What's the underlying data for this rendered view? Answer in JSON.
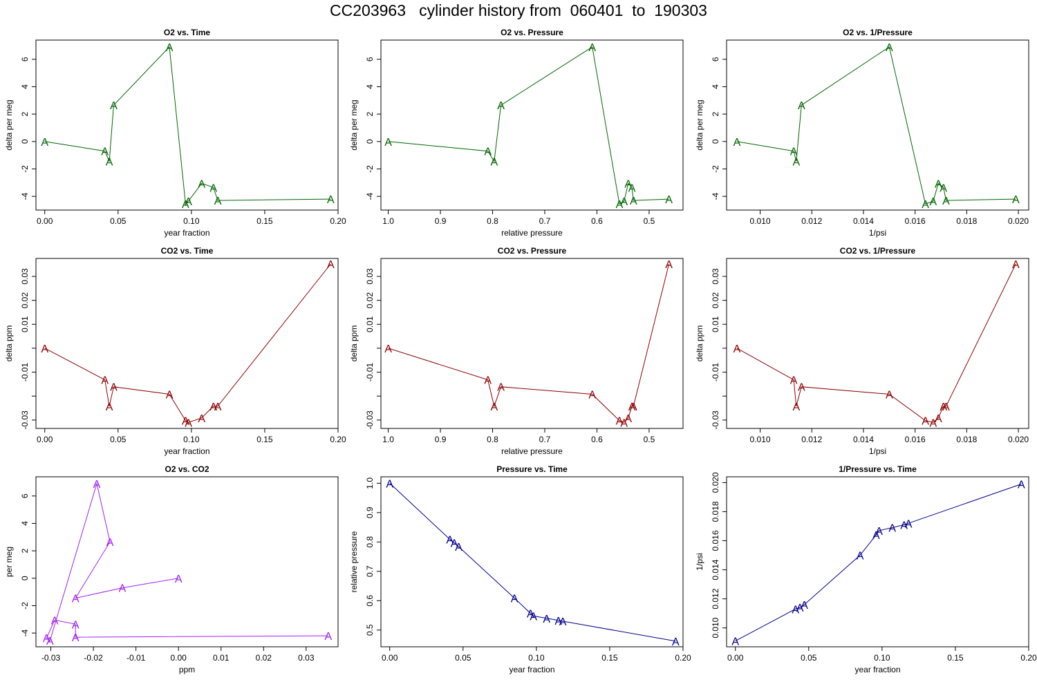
{
  "page_title": "CC203963   cylinder history from  060401  to  190303",
  "marker_label": "A",
  "colors": {
    "o2": "#006400",
    "co2": "#8b0000",
    "o2co2": "#a020f0",
    "pressure": "#00008b"
  },
  "chart_data": [
    {
      "type": "line",
      "title": "O2 vs. Time",
      "xlabel": "year fraction",
      "ylabel": "delta per meg",
      "color": "#006400",
      "xlim": [
        -0.006,
        0.2
      ],
      "ylim": [
        -5.0,
        7.4
      ],
      "xticks": [
        0.0,
        0.05,
        0.1,
        0.15,
        0.2
      ],
      "xtick_labels": [
        "0.00",
        "0.05",
        "0.10",
        "0.15",
        "0.20"
      ],
      "yticks": [
        -4,
        -2,
        0,
        2,
        4,
        6
      ],
      "ytick_labels": [
        "-4",
        "-2",
        "0",
        "2",
        "4",
        "6"
      ],
      "x": [
        0.0,
        0.041,
        0.044,
        0.047,
        0.085,
        0.096,
        0.098,
        0.107,
        0.115,
        0.118,
        0.195
      ],
      "y": [
        0.0,
        -0.7,
        -1.45,
        2.65,
        6.9,
        -4.55,
        -4.35,
        -3.05,
        -3.35,
        -4.3,
        -4.2
      ]
    },
    {
      "type": "line",
      "title": "O2 vs. Pressure",
      "xlabel": "relative pressure",
      "ylabel": "delta per meg",
      "color": "#006400",
      "xlim": [
        1.014,
        0.435
      ],
      "ylim": [
        -5.0,
        7.4
      ],
      "xticks": [
        1.0,
        0.9,
        0.8,
        0.7,
        0.6,
        0.5
      ],
      "xtick_labels": [
        "1.0",
        "0.9",
        "0.8",
        "0.7",
        "0.6",
        "0.5"
      ],
      "yticks": [
        -4,
        -2,
        0,
        2,
        4,
        6
      ],
      "ytick_labels": [
        "-4",
        "-2",
        "0",
        "2",
        "4",
        "6"
      ],
      "x": [
        1.0,
        0.809,
        0.797,
        0.784,
        0.609,
        0.557,
        0.548,
        0.54,
        0.533,
        0.53,
        0.462
      ],
      "y": [
        0.0,
        -0.7,
        -1.45,
        2.65,
        6.9,
        -4.55,
        -4.35,
        -3.05,
        -3.35,
        -4.3,
        -4.2
      ]
    },
    {
      "type": "line",
      "title": "O2 vs. 1/Pressure",
      "xlabel": "1/psi",
      "ylabel": "delta per meg",
      "color": "#006400",
      "xlim": [
        0.0087,
        0.0204
      ],
      "ylim": [
        -5.0,
        7.4
      ],
      "xticks": [
        0.01,
        0.012,
        0.014,
        0.016,
        0.018,
        0.02
      ],
      "xtick_labels": [
        "0.010",
        "0.012",
        "0.014",
        "0.016",
        "0.018",
        "0.020"
      ],
      "yticks": [
        -4,
        -2,
        0,
        2,
        4,
        6
      ],
      "ytick_labels": [
        "-4",
        "-2",
        "0",
        "2",
        "4",
        "6"
      ],
      "x": [
        0.0091,
        0.0113,
        0.0114,
        0.0116,
        0.015,
        0.0164,
        0.0167,
        0.0169,
        0.0171,
        0.0172,
        0.0199
      ],
      "y": [
        0.0,
        -0.7,
        -1.45,
        2.65,
        6.9,
        -4.55,
        -4.35,
        -3.05,
        -3.35,
        -4.3,
        -4.2
      ]
    },
    {
      "type": "line",
      "title": "CO2 vs. Time",
      "xlabel": "year fraction",
      "ylabel": "delta ppm",
      "color": "#8b0000",
      "xlim": [
        -0.006,
        0.2
      ],
      "ylim": [
        -0.0335,
        0.0375
      ],
      "xticks": [
        0.0,
        0.05,
        0.1,
        0.15,
        0.2
      ],
      "xtick_labels": [
        "0.00",
        "0.05",
        "0.10",
        "0.15",
        "0.20"
      ],
      "yticks": [
        -0.03,
        -0.02,
        -0.01,
        0.0,
        0.01,
        0.02,
        0.03
      ],
      "ytick_labels": [
        "-0.03",
        "",
        "-0.01",
        "",
        "0.01",
        "0.02",
        "0.03"
      ],
      "x": [
        0.0,
        0.041,
        0.044,
        0.047,
        0.085,
        0.096,
        0.098,
        0.107,
        0.115,
        0.118,
        0.195
      ],
      "y": [
        0.0,
        -0.0132,
        -0.0242,
        -0.0161,
        -0.0192,
        -0.0302,
        -0.031,
        -0.0291,
        -0.0242,
        -0.0242,
        0.0352
      ]
    },
    {
      "type": "line",
      "title": "CO2 vs. Pressure",
      "xlabel": "relative pressure",
      "ylabel": "delta ppm",
      "color": "#8b0000",
      "xlim": [
        1.014,
        0.435
      ],
      "ylim": [
        -0.0335,
        0.0375
      ],
      "xticks": [
        1.0,
        0.9,
        0.8,
        0.7,
        0.6,
        0.5
      ],
      "xtick_labels": [
        "1.0",
        "0.9",
        "0.8",
        "0.7",
        "0.6",
        "0.5"
      ],
      "yticks": [
        -0.03,
        -0.02,
        -0.01,
        0.0,
        0.01,
        0.02,
        0.03
      ],
      "ytick_labels": [
        "-0.03",
        "",
        "-0.01",
        "",
        "0.01",
        "0.02",
        "0.03"
      ],
      "x": [
        1.0,
        0.809,
        0.797,
        0.784,
        0.609,
        0.557,
        0.548,
        0.54,
        0.533,
        0.53,
        0.462
      ],
      "y": [
        0.0,
        -0.0132,
        -0.0242,
        -0.0161,
        -0.0192,
        -0.0302,
        -0.031,
        -0.0291,
        -0.0242,
        -0.0242,
        0.0352
      ]
    },
    {
      "type": "line",
      "title": "CO2 vs. 1/Pressure",
      "xlabel": "1/psi",
      "ylabel": "delta ppm",
      "color": "#8b0000",
      "xlim": [
        0.0087,
        0.0204
      ],
      "ylim": [
        -0.0335,
        0.0375
      ],
      "xticks": [
        0.01,
        0.012,
        0.014,
        0.016,
        0.018,
        0.02
      ],
      "xtick_labels": [
        "0.010",
        "0.012",
        "0.014",
        "0.016",
        "0.018",
        "0.020"
      ],
      "yticks": [
        -0.03,
        -0.02,
        -0.01,
        0.0,
        0.01,
        0.02,
        0.03
      ],
      "ytick_labels": [
        "-0.03",
        "",
        "-0.01",
        "",
        "0.01",
        "0.02",
        "0.03"
      ],
      "x": [
        0.0091,
        0.0113,
        0.0114,
        0.0116,
        0.015,
        0.0164,
        0.0167,
        0.0169,
        0.0171,
        0.0172,
        0.0199
      ],
      "y": [
        0.0,
        -0.0132,
        -0.0242,
        -0.0161,
        -0.0192,
        -0.0302,
        -0.031,
        -0.0291,
        -0.0242,
        -0.0242,
        0.0352
      ]
    },
    {
      "type": "line",
      "title": "O2 vs. CO2",
      "xlabel": "ppm",
      "ylabel": "per meg",
      "color": "#a020f0",
      "xlim": [
        -0.0335,
        0.0375
      ],
      "ylim": [
        -5.0,
        7.4
      ],
      "xticks": [
        -0.03,
        -0.02,
        -0.01,
        0.0,
        0.01,
        0.02,
        0.03
      ],
      "xtick_labels": [
        "-0.03",
        "-0.02",
        "-0.01",
        "0.00",
        "0.01",
        "0.02",
        "0.03"
      ],
      "yticks": [
        -4,
        -2,
        0,
        2,
        4,
        6
      ],
      "ytick_labels": [
        "-4",
        "-2",
        "0",
        "2",
        "4",
        "6"
      ],
      "x": [
        0.0,
        -0.0132,
        -0.0242,
        -0.0161,
        -0.0192,
        -0.0302,
        -0.031,
        -0.0291,
        -0.0242,
        -0.0242,
        0.0352
      ],
      "y": [
        0.0,
        -0.7,
        -1.45,
        2.65,
        6.9,
        -4.55,
        -4.35,
        -3.05,
        -3.35,
        -4.3,
        -4.2
      ]
    },
    {
      "type": "line",
      "title": "Pressure vs. Time",
      "xlabel": "year fraction",
      "ylabel": "relative pressure",
      "color": "#00008b",
      "xlim": [
        -0.006,
        0.2
      ],
      "ylim": [
        0.443,
        1.022
      ],
      "xticks": [
        0.0,
        0.05,
        0.1,
        0.15,
        0.2
      ],
      "xtick_labels": [
        "0.00",
        "0.05",
        "0.10",
        "0.15",
        "0.20"
      ],
      "yticks": [
        0.5,
        0.6,
        0.7,
        0.8,
        0.9,
        1.0
      ],
      "ytick_labels": [
        "0.5",
        "0.6",
        "0.7",
        "0.8",
        "0.9",
        "1.0"
      ],
      "x": [
        0.0,
        0.041,
        0.044,
        0.047,
        0.085,
        0.096,
        0.098,
        0.107,
        0.115,
        0.118,
        0.195
      ],
      "y": [
        1.0,
        0.809,
        0.797,
        0.784,
        0.609,
        0.557,
        0.548,
        0.54,
        0.533,
        0.53,
        0.462
      ]
    },
    {
      "type": "line",
      "title": "1/Pressure vs. Time",
      "xlabel": "year fraction",
      "ylabel": "1/psi",
      "color": "#00008b",
      "xlim": [
        -0.006,
        0.2
      ],
      "ylim": [
        0.0087,
        0.0204
      ],
      "xticks": [
        0.0,
        0.05,
        0.1,
        0.15,
        0.2
      ],
      "xtick_labels": [
        "0.00",
        "0.05",
        "0.10",
        "0.15",
        "0.20"
      ],
      "yticks": [
        0.01,
        0.012,
        0.014,
        0.016,
        0.018,
        0.02
      ],
      "ytick_labels": [
        "0.010",
        "0.012",
        "0.014",
        "0.016",
        "0.018",
        "0.020"
      ],
      "x": [
        0.0,
        0.041,
        0.044,
        0.047,
        0.085,
        0.096,
        0.098,
        0.107,
        0.115,
        0.118,
        0.195
      ],
      "y": [
        0.0091,
        0.0113,
        0.0114,
        0.0116,
        0.015,
        0.0164,
        0.0167,
        0.0169,
        0.0171,
        0.0172,
        0.0199
      ]
    }
  ]
}
